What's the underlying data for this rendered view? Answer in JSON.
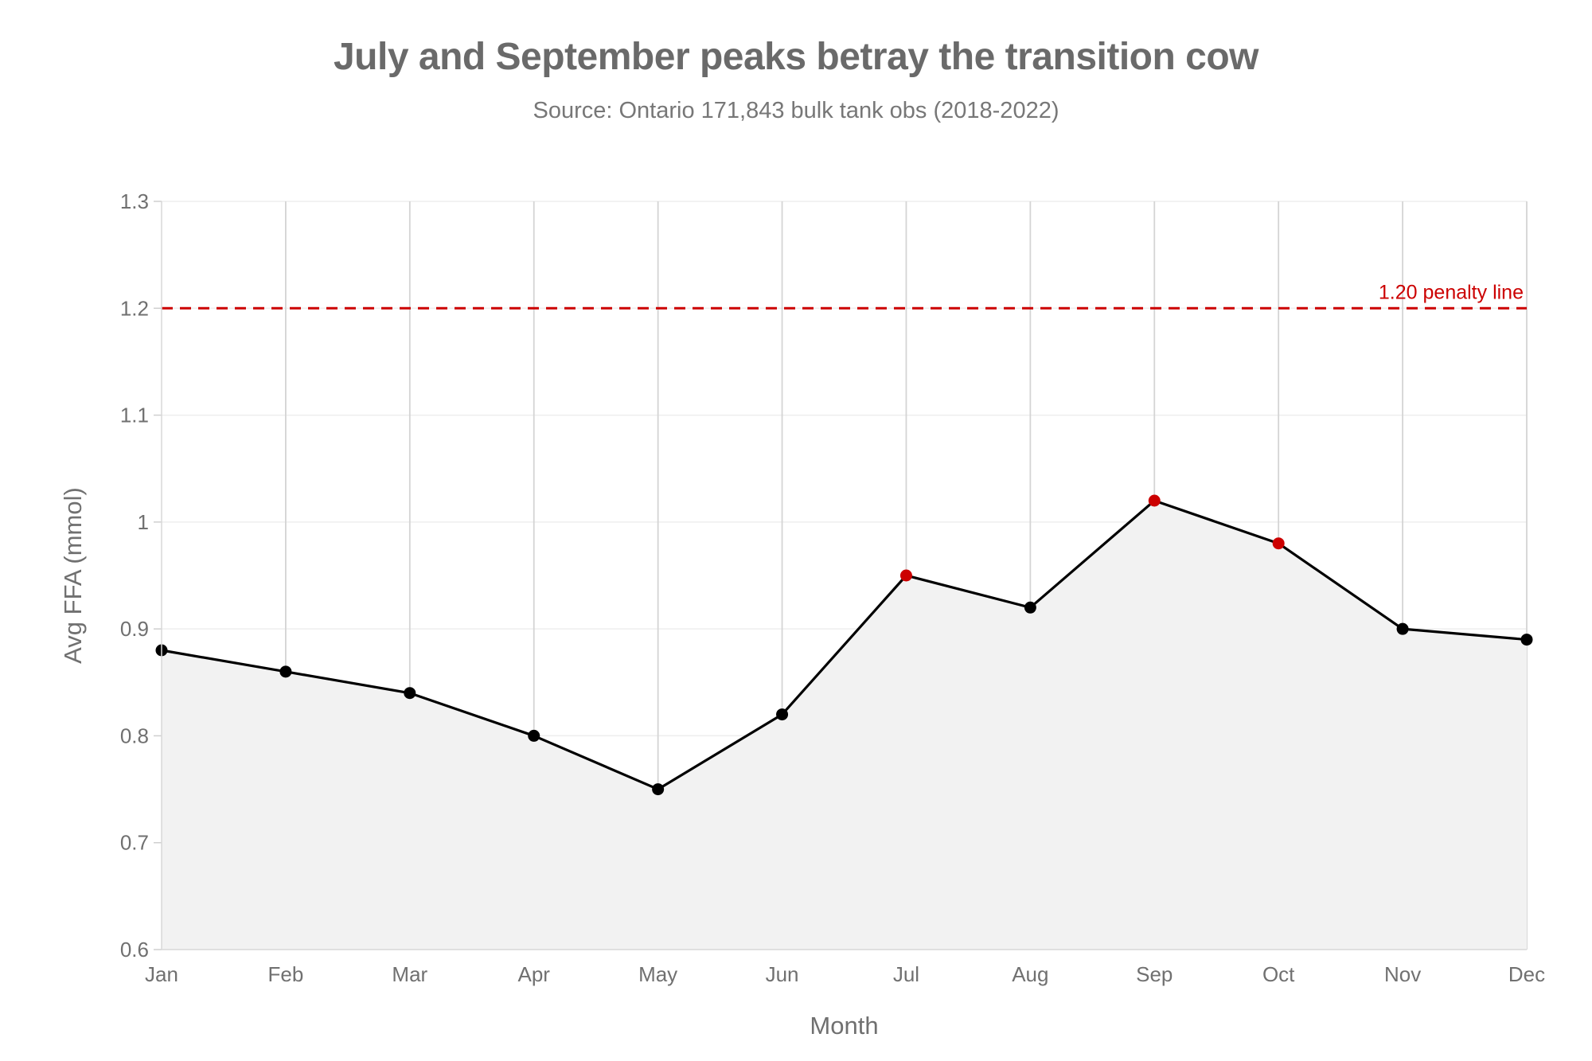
{
  "chart_data": {
    "type": "line",
    "title": "July and September peaks betray the transition cow",
    "subtitle": "Source: Ontario 171,843 bulk tank obs (2018-2022)",
    "xlabel": "Month",
    "ylabel": "Avg FFA (mmol)",
    "categories": [
      "Jan",
      "Feb",
      "Mar",
      "Apr",
      "May",
      "Jun",
      "Jul",
      "Aug",
      "Sep",
      "Oct",
      "Nov",
      "Dec"
    ],
    "series": [
      {
        "values": [
          0.88,
          0.86,
          0.84,
          0.8,
          0.75,
          0.82,
          0.95,
          0.92,
          1.02,
          0.98,
          0.9,
          0.89
        ],
        "highlighted": [
          "Jul",
          "Sep",
          "Oct"
        ],
        "area_fill": true
      }
    ],
    "ylim": [
      0.6,
      1.3
    ],
    "yticks": [
      0.6,
      0.7,
      0.8,
      0.9,
      1,
      1.1,
      1.2,
      1.3
    ],
    "ytick_labels": [
      "0.6",
      "0.7",
      "0.8",
      "0.9",
      "1",
      "1.1",
      "1.2",
      "1.3"
    ],
    "reference_line": {
      "value": 1.2,
      "label": "1.20 penalty line",
      "style": "dashed"
    },
    "grid": {
      "vertical": true,
      "horizontal": true
    },
    "legend": "none"
  },
  "colors": {
    "line": "#000000",
    "marker": "#000000",
    "highlight_marker": "#cc0000",
    "area_fill": "#f2f2f2",
    "reference_line": "#cc0000",
    "vertical_grid": "#d4d4d4",
    "horizontal_grid": "#eeeeee",
    "text": "#707070"
  }
}
